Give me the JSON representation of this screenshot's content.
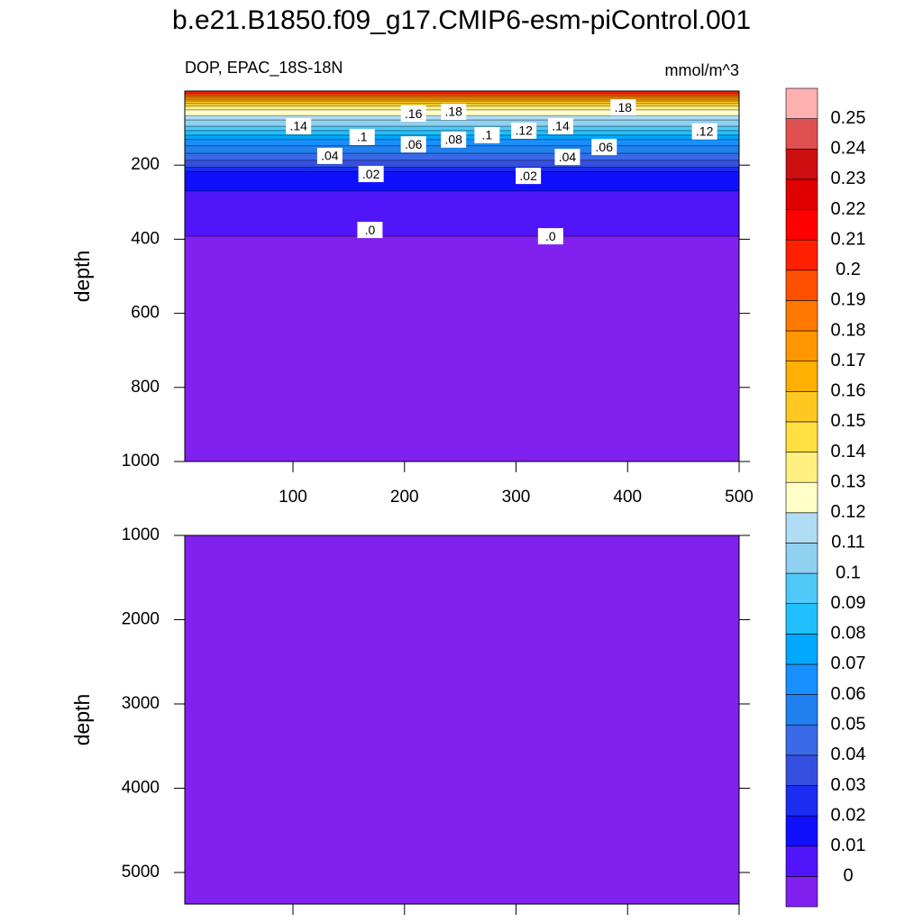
{
  "chart_data": {
    "type": "contour",
    "title": "b.e21.B1850.f09_g17.CMIP6-esm-piControl.001",
    "left_label": "DOP, EPAC_18S-18N",
    "right_label": "mmol/m^3",
    "levels": [
      0,
      0.01,
      0.02,
      0.03,
      0.04,
      0.05,
      0.06,
      0.07,
      0.08,
      0.09,
      0.1,
      0.11,
      0.12,
      0.13,
      0.14,
      0.15,
      0.16,
      0.17,
      0.18,
      0.19,
      0.2,
      0.21,
      0.22,
      0.23,
      0.24,
      0.25
    ],
    "colors": [
      "#8021ef",
      "#5015f8",
      "#1010ff",
      "#1a2df0",
      "#3550e0",
      "#3a6ae8",
      "#2080ef",
      "#1890ff",
      "#00a8ff",
      "#20c0ff",
      "#50c8f8",
      "#90d0f0",
      "#b0dcf4",
      "#ffffc8",
      "#fff080",
      "#ffe040",
      "#ffc820",
      "#ffb000",
      "#ff9800",
      "#ff7800",
      "#ff5000",
      "#ff2000",
      "#ff0000",
      "#e00000",
      "#cc1010",
      "#e05050",
      "#ffb0b0"
    ],
    "panels": [
      {
        "ylabel": "depth",
        "xlim": [
          3,
          500
        ],
        "xticks": [
          100,
          200,
          300,
          400,
          500
        ],
        "xtick_labels": true,
        "ylim": [
          0,
          1000
        ],
        "yticks": [
          200,
          400,
          600,
          800,
          1000
        ],
        "contour_depths": [
          392,
          270,
          217,
          205,
          187,
          168,
          148,
          131,
          119,
          107,
          95,
          78,
          66,
          51,
          41,
          34,
          27,
          22,
          17,
          12,
          7,
          null,
          null,
          null,
          null,
          null
        ]
      },
      {
        "ylabel": "depth",
        "xlim": [
          3,
          500
        ],
        "xticks": [
          100,
          200,
          300,
          400,
          500
        ],
        "xtick_labels": false,
        "ylim": [
          1000,
          5375
        ],
        "yticks": [
          1000,
          2000,
          3000,
          4000,
          5000
        ]
      }
    ],
    "contour_labels": [
      {
        "text": ".16",
        "x": 208,
        "y": 61
      },
      {
        "text": ".18",
        "x": 244,
        "y": 56
      },
      {
        "text": ".18",
        "x": 396,
        "y": 44
      },
      {
        "text": ".14",
        "x": 105,
        "y": 95
      },
      {
        "text": ".1",
        "x": 162,
        "y": 124
      },
      {
        "text": ".04",
        "x": 133,
        "y": 175
      },
      {
        "text": ".06",
        "x": 208,
        "y": 144
      },
      {
        "text": ".08",
        "x": 244,
        "y": 131
      },
      {
        "text": ".1",
        "x": 274,
        "y": 119
      },
      {
        "text": ".12",
        "x": 307,
        "y": 107
      },
      {
        "text": ".14",
        "x": 340,
        "y": 95
      },
      {
        "text": ".12",
        "x": 469,
        "y": 109
      },
      {
        "text": ".06",
        "x": 379,
        "y": 151
      },
      {
        "text": ".04",
        "x": 346,
        "y": 178
      },
      {
        "text": ".02",
        "x": 170,
        "y": 224
      },
      {
        "text": ".02",
        "x": 311,
        "y": 229
      },
      {
        "text": ".0",
        "x": 169,
        "y": 375
      },
      {
        "text": ".0",
        "x": 331,
        "y": 392
      }
    ]
  }
}
